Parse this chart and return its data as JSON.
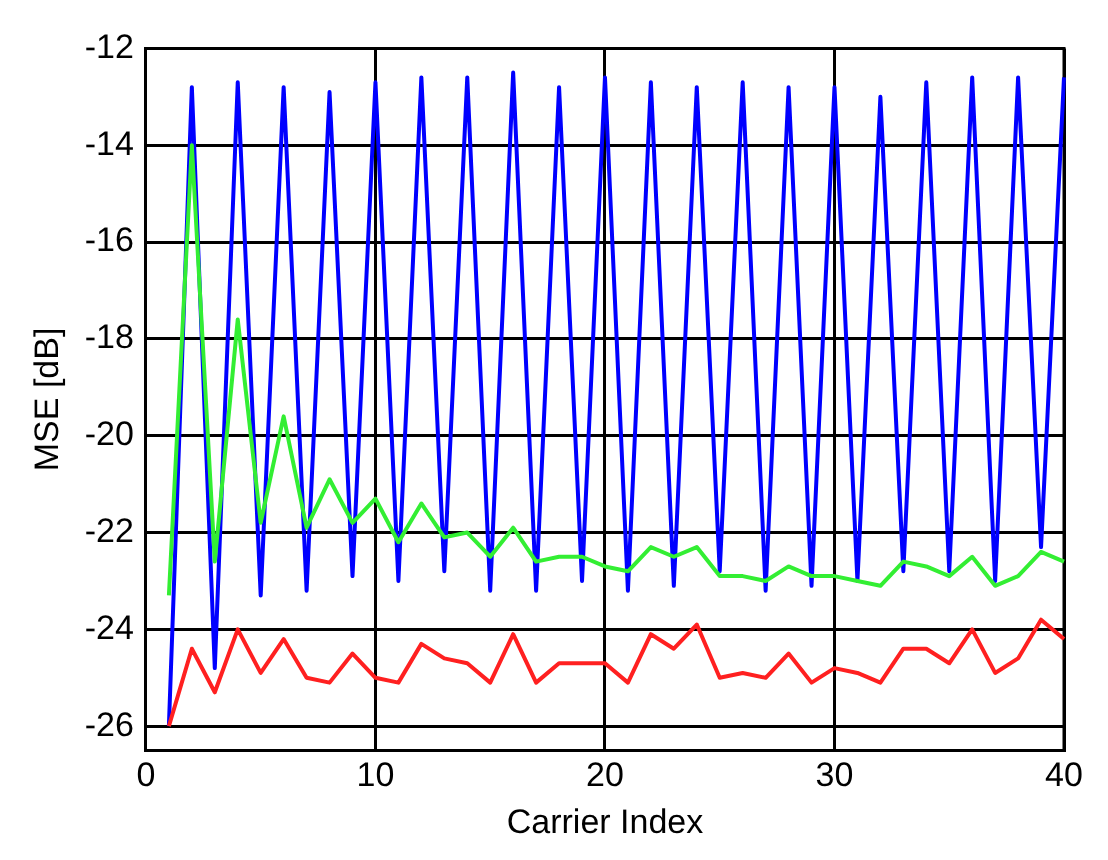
{
  "chart_data": {
    "type": "line",
    "xlabel": "Carrier Index",
    "ylabel": "MSE [dB]",
    "x": [
      1,
      2,
      3,
      4,
      5,
      6,
      7,
      8,
      9,
      10,
      11,
      12,
      13,
      14,
      15,
      16,
      17,
      18,
      19,
      20,
      21,
      22,
      23,
      24,
      25,
      26,
      27,
      28,
      29,
      30,
      31,
      32,
      33,
      34,
      35,
      36,
      37,
      38,
      39,
      40
    ],
    "xlim": [
      0,
      40
    ],
    "xticks": [
      0,
      10,
      20,
      30,
      40
    ],
    "ylim": [
      -26.5,
      -12
    ],
    "yticks": [
      -26,
      -24,
      -22,
      -20,
      -18,
      -16,
      -14,
      -12
    ],
    "grid": true,
    "legend": false,
    "marker": "none",
    "line_style": "solid",
    "series": [
      {
        "color": "#0000ff",
        "values": [
          -26.0,
          -12.8,
          -24.8,
          -12.7,
          -23.3,
          -12.8,
          -23.2,
          -12.9,
          -22.9,
          -12.7,
          -23.0,
          -12.6,
          -22.8,
          -12.6,
          -23.2,
          -12.5,
          -23.2,
          -12.8,
          -23.0,
          -12.6,
          -23.2,
          -12.7,
          -23.1,
          -12.8,
          -22.8,
          -12.7,
          -23.2,
          -12.8,
          -23.1,
          -12.8,
          -23.0,
          -13.0,
          -22.8,
          -12.7,
          -22.8,
          -12.6,
          -23.0,
          -12.6,
          -22.3,
          -12.6
        ]
      },
      {
        "color": "#33ee33",
        "values": [
          -23.3,
          -14.0,
          -22.6,
          -17.6,
          -21.8,
          -19.6,
          -21.9,
          -20.9,
          -21.8,
          -21.3,
          -22.2,
          -21.4,
          -22.1,
          -22.0,
          -22.5,
          -21.9,
          -22.6,
          -22.5,
          -22.5,
          -22.7,
          -22.8,
          -22.3,
          -22.5,
          -22.3,
          -22.9,
          -22.9,
          -23.0,
          -22.7,
          -22.9,
          -22.9,
          -23.0,
          -23.1,
          -22.6,
          -22.7,
          -22.9,
          -22.5,
          -23.1,
          -22.9,
          -22.4,
          -22.6
        ]
      },
      {
        "color": "#ff2020",
        "values": [
          -26.0,
          -24.4,
          -25.3,
          -24.0,
          -24.9,
          -24.2,
          -25.0,
          -25.1,
          -24.5,
          -25.0,
          -25.1,
          -24.3,
          -24.6,
          -24.7,
          -25.1,
          -24.1,
          -25.1,
          -24.7,
          -24.7,
          -24.7,
          -25.1,
          -24.1,
          -24.4,
          -23.9,
          -25.0,
          -24.9,
          -25.0,
          -24.5,
          -25.1,
          -24.8,
          -24.9,
          -25.1,
          -24.4,
          -24.4,
          -24.7,
          -24.0,
          -24.9,
          -24.6,
          -23.8,
          -24.2
        ]
      }
    ]
  }
}
